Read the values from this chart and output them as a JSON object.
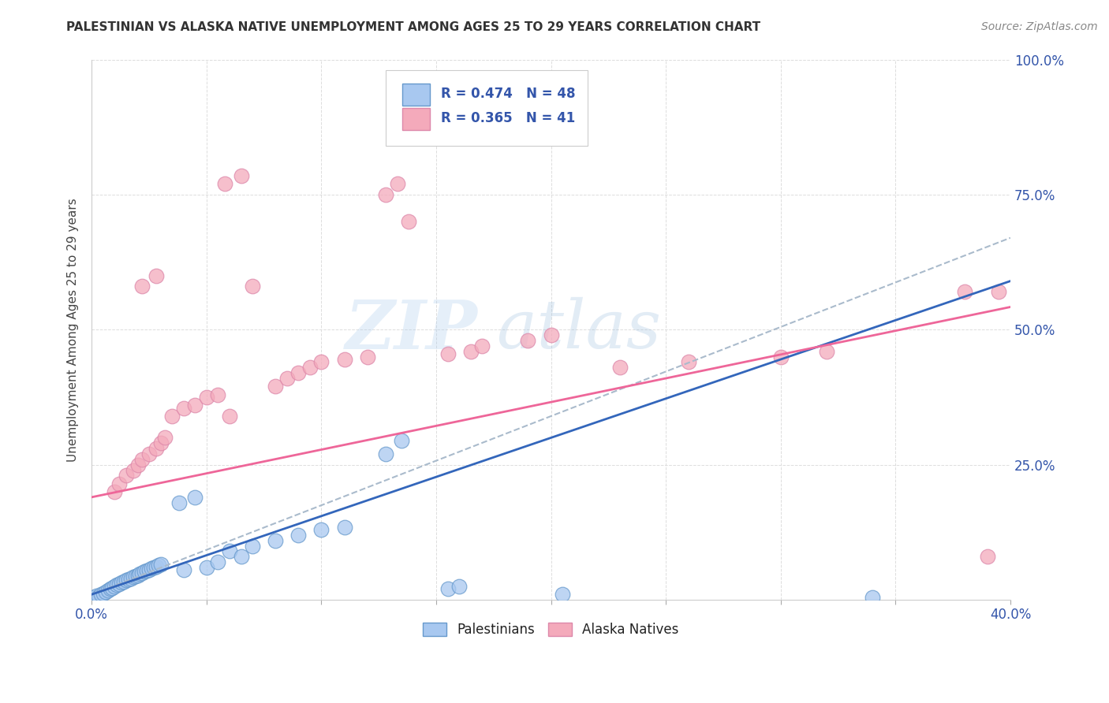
{
  "title": "PALESTINIAN VS ALASKA NATIVE UNEMPLOYMENT AMONG AGES 25 TO 29 YEARS CORRELATION CHART",
  "source": "Source: ZipAtlas.com",
  "ylabel": "Unemployment Among Ages 25 to 29 years",
  "xlim": [
    0.0,
    0.4
  ],
  "ylim": [
    0.0,
    1.0
  ],
  "xticks": [
    0.0,
    0.05,
    0.1,
    0.15,
    0.2,
    0.25,
    0.3,
    0.35,
    0.4
  ],
  "xticklabels_show": {
    "0.0": "0.0%",
    "0.40": "40.0%"
  },
  "yticks": [
    0.0,
    0.25,
    0.5,
    0.75,
    1.0
  ],
  "yticklabels": [
    "",
    "25.0%",
    "50.0%",
    "75.0%",
    "100.0%"
  ],
  "blue_fill": "#A8C8F0",
  "blue_edge": "#6699CC",
  "pink_fill": "#F4AABB",
  "pink_edge": "#DD88AA",
  "blue_line_color": "#3366BB",
  "pink_line_color": "#EE6699",
  "gray_dash_color": "#AABBCC",
  "legend_R_blue": "R = 0.474",
  "legend_N_blue": "N = 48",
  "legend_R_pink": "R = 0.365",
  "legend_N_pink": "N = 41",
  "legend_text_color": "#3355AA",
  "watermark_zip": "ZIP",
  "watermark_atlas": "atlas",
  "title_fontsize": 11,
  "blue_line_intercept": 0.01,
  "blue_line_slope": 1.45,
  "pink_line_intercept": 0.19,
  "pink_line_slope": 0.88,
  "gray_dash_intercept": 0.01,
  "gray_dash_slope": 1.65
}
